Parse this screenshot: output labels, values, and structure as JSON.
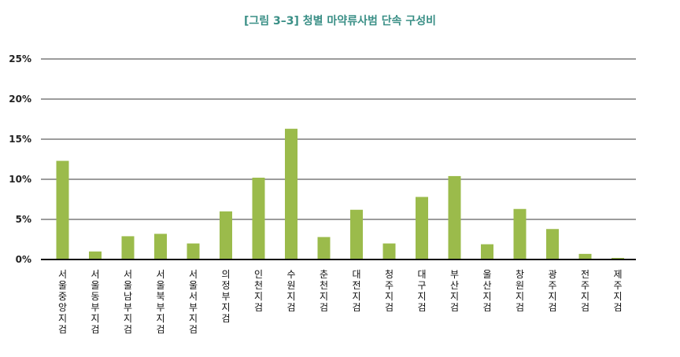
{
  "colors": {
    "title": "#3a8f86",
    "bar": "#9bbb4b",
    "grid": "#3a3a3a",
    "axis": "#111111"
  },
  "chart_data": {
    "type": "bar",
    "title": "[그림 3–3] 청별 마약류사범 단속 구성비",
    "xlabel": "",
    "ylabel": "",
    "ylim": [
      0,
      25
    ],
    "yticks": [
      "0%",
      "5%",
      "10%",
      "15%",
      "20%",
      "25%"
    ],
    "ytick_values": [
      0,
      5,
      10,
      15,
      20,
      25
    ],
    "grid": true,
    "legend": "none",
    "categories": [
      "서울중앙지검",
      "서울동부지검",
      "서울남부지검",
      "서울북부지검",
      "서울서부지검",
      "의정부지검",
      "인천지검",
      "수원지검",
      "춘천지검",
      "대전지검",
      "청주지검",
      "대구지검",
      "부산지검",
      "울산지검",
      "창원지검",
      "광주지검",
      "전주지검",
      "제주지검"
    ],
    "values": [
      12.3,
      1.0,
      2.9,
      3.2,
      2.0,
      6.0,
      10.2,
      16.3,
      2.8,
      6.2,
      2.0,
      7.8,
      10.4,
      1.9,
      6.3,
      3.8,
      0.7,
      0.2
    ]
  }
}
